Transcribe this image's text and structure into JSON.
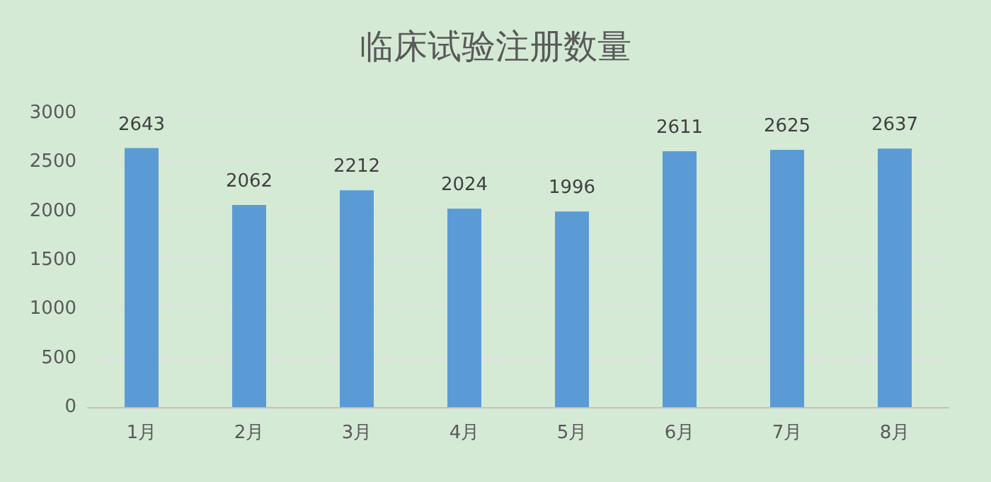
{
  "chart_data": {
    "type": "bar",
    "title": "临床试验注册数量",
    "categories": [
      "1月",
      "2月",
      "3月",
      "4月",
      "5月",
      "6月",
      "7月",
      "8月"
    ],
    "values": [
      2643,
      2062,
      2212,
      2024,
      1996,
      2611,
      2625,
      2637
    ],
    "color": "#5b9bd5",
    "ylim": [
      0,
      3000
    ],
    "yticks": [
      0,
      500,
      1000,
      1500,
      2000,
      2500,
      3000
    ],
    "grid": "y",
    "data_labels": true
  }
}
